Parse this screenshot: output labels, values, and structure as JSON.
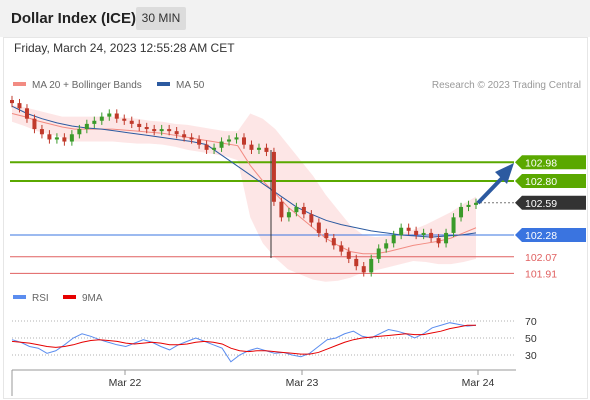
{
  "header": {
    "title": "Dollar Index (ICE)",
    "timeframe": "30 MIN"
  },
  "datetime": "Friday, March 24, 2023 12:55:28 AM CET",
  "credit": "Research © 2023 Trading Central",
  "legend": {
    "main": [
      {
        "label": "MA 20 + Bollinger Bands",
        "color": "#f28b82"
      },
      {
        "label": "MA 50",
        "color": "#2c5aa0"
      }
    ],
    "rsi": [
      {
        "label": "RSI",
        "color": "#5b8def"
      },
      {
        "label": "9MA",
        "color": "#e60000"
      }
    ]
  },
  "colors": {
    "resistance": "#5aa800",
    "pivot": "#3a74e0",
    "support": "#e06060",
    "candle_up": "#3a9a2a",
    "candle_down": "#c0392b",
    "arrow": "#2c5aa0",
    "current_bg": "#333333",
    "band_fill": "#fde0e0"
  },
  "chart_data": [
    {
      "type": "candlestick",
      "x_tick_labels": [
        "Mar 22",
        "Mar 23",
        "Mar 24"
      ],
      "levels": [
        {
          "value": 102.98,
          "label": "102.98",
          "kind": "resistance"
        },
        {
          "value": 102.8,
          "label": "102.80",
          "kind": "resistance"
        },
        {
          "value": 102.59,
          "label": "102.59",
          "kind": "current"
        },
        {
          "value": 102.28,
          "label": "102.28",
          "kind": "pivot"
        },
        {
          "value": 102.07,
          "label": "102.07",
          "kind": "support"
        },
        {
          "value": 101.91,
          "label": "101.91",
          "kind": "support"
        }
      ],
      "series": [
        {
          "name": "Price",
          "close": [
            103.55,
            103.5,
            103.4,
            103.3,
            103.25,
            103.2,
            103.22,
            103.18,
            103.25,
            103.3,
            103.35,
            103.38,
            103.42,
            103.45,
            103.4,
            103.38,
            103.35,
            103.32,
            103.3,
            103.28,
            103.3,
            103.28,
            103.25,
            103.22,
            103.2,
            103.15,
            103.1,
            103.12,
            103.18,
            103.2,
            103.22,
            103.15,
            103.1,
            103.12,
            103.08,
            102.6,
            102.45,
            102.5,
            102.55,
            102.48,
            102.4,
            102.3,
            102.25,
            102.18,
            102.12,
            102.05,
            101.98,
            101.92,
            102.05,
            102.15,
            102.2,
            102.28,
            102.35,
            102.32,
            102.28,
            102.3,
            102.25,
            102.2,
            102.3,
            102.45,
            102.55,
            102.57,
            102.59
          ]
        },
        {
          "name": "MA 20",
          "values": [
            103.45,
            103.42,
            103.38,
            103.35,
            103.32,
            103.3,
            103.3,
            103.3,
            103.3,
            103.29,
            103.28,
            103.27,
            103.26,
            103.24,
            103.22,
            103.2,
            103.18,
            103.16,
            103.14,
            102.95,
            102.8,
            102.68,
            102.55,
            102.45,
            102.35,
            102.25,
            102.18,
            102.12,
            102.1,
            102.1,
            102.12,
            102.15,
            102.18,
            102.2,
            102.22,
            102.25,
            102.3,
            102.35
          ]
        },
        {
          "name": "MA 50",
          "values": [
            103.52,
            103.45,
            103.4,
            103.36,
            103.33,
            103.31,
            103.3,
            103.28,
            103.26,
            103.24,
            103.22,
            103.2,
            103.18,
            103.15,
            103.05,
            102.95,
            102.85,
            102.75,
            102.65,
            102.55,
            102.48,
            102.42,
            102.38,
            102.35,
            102.32,
            102.3,
            102.28,
            102.27,
            102.26,
            102.27,
            102.28,
            102.3
          ]
        }
      ]
    },
    {
      "type": "line",
      "yticks": [
        70,
        50,
        30
      ],
      "series": [
        {
          "name": "RSI",
          "values": [
            48,
            45,
            40,
            38,
            32,
            35,
            42,
            50,
            55,
            52,
            48,
            45,
            42,
            40,
            44,
            48,
            45,
            40,
            36,
            42,
            46,
            50,
            46,
            42,
            38,
            22,
            30,
            35,
            38,
            35,
            32,
            33,
            30,
            28,
            32,
            40,
            48,
            50,
            55,
            58,
            52,
            50,
            55,
            60,
            58,
            55,
            50,
            55,
            62,
            65,
            68,
            66,
            64,
            65
          ]
        },
        {
          "name": "9MA",
          "values": [
            46,
            45,
            44,
            42,
            40,
            39,
            40,
            42,
            45,
            47,
            48,
            47,
            46,
            44,
            43,
            44,
            45,
            44,
            42,
            42,
            43,
            45,
            46,
            45,
            43,
            38,
            35,
            34,
            35,
            35,
            34,
            33,
            32,
            31,
            31,
            33,
            37,
            41,
            45,
            48,
            50,
            51,
            52,
            53,
            54,
            55,
            54,
            54,
            56,
            58,
            61,
            63,
            65,
            65
          ]
        }
      ]
    }
  ]
}
